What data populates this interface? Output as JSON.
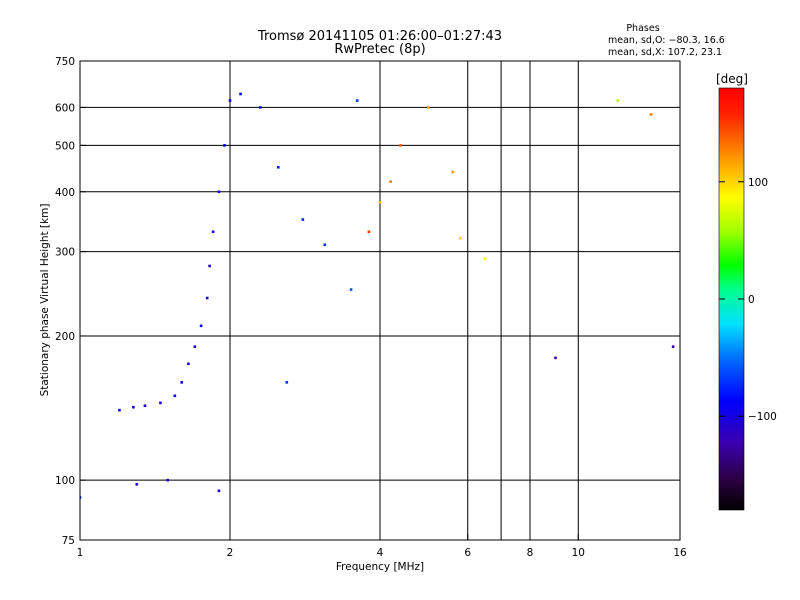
{
  "chart_data": {
    "type": "scatter",
    "title": "Tromsø 20141105 01:26:00–01:27:43",
    "subtitle": "RwPretec (8p)",
    "xlabel": "Frequency [MHz]",
    "ylabel": "Stationary phase Virtual Height [km]",
    "x_scale": "log",
    "y_scale": "log",
    "xlim": [
      1,
      16
    ],
    "ylim": [
      75,
      750
    ],
    "x_ticks": [
      1,
      2,
      4,
      6,
      8,
      10,
      16
    ],
    "x_tick_labels": [
      "1",
      "2",
      "4",
      "6",
      "8",
      "10",
      "16"
    ],
    "x_gridlines": [
      2,
      4,
      6,
      7,
      8,
      10
    ],
    "y_ticks": [
      75,
      100,
      200,
      300,
      400,
      500,
      600,
      750
    ],
    "y_tick_labels": [
      "75",
      "100",
      "200",
      "300",
      "400",
      "500",
      "600",
      "750"
    ],
    "y_gridlines": [
      100,
      200,
      300,
      400,
      500,
      600
    ],
    "grid": true,
    "legend": {
      "title": "Phases",
      "lines": [
        "mean, sd,O: −80.3, 16.6",
        "mean, sd,X: 107.2, 23.1"
      ],
      "placement": "top-right"
    },
    "colorbar": {
      "label": "[deg]",
      "min": -180,
      "max": 180,
      "ticks": [
        100,
        0,
        -100
      ],
      "tick_labels": [
        "100",
        "0",
        "−100"
      ],
      "colormap": "rainbow"
    },
    "series": [
      {
        "points": [
          {
            "x": 1.0,
            "y": 92,
            "c": -70
          },
          {
            "x": 1.2,
            "y": 140,
            "c": -90
          },
          {
            "x": 1.28,
            "y": 142,
            "c": -100
          },
          {
            "x": 1.35,
            "y": 143,
            "c": -110
          },
          {
            "x": 1.45,
            "y": 145,
            "c": -100
          },
          {
            "x": 1.55,
            "y": 150,
            "c": -90
          },
          {
            "x": 1.6,
            "y": 160,
            "c": -100
          },
          {
            "x": 1.65,
            "y": 175,
            "c": -110
          },
          {
            "x": 1.7,
            "y": 190,
            "c": -100
          },
          {
            "x": 1.75,
            "y": 210,
            "c": -90
          },
          {
            "x": 1.8,
            "y": 240,
            "c": -100
          },
          {
            "x": 1.82,
            "y": 280,
            "c": -110
          },
          {
            "x": 1.85,
            "y": 330,
            "c": -100
          },
          {
            "x": 1.9,
            "y": 400,
            "c": -100
          },
          {
            "x": 1.95,
            "y": 500,
            "c": -90
          },
          {
            "x": 2.0,
            "y": 620,
            "c": -100
          },
          {
            "x": 2.1,
            "y": 640,
            "c": -90
          },
          {
            "x": 2.3,
            "y": 600,
            "c": -80
          },
          {
            "x": 2.5,
            "y": 450,
            "c": -80
          },
          {
            "x": 2.8,
            "y": 350,
            "c": -75
          },
          {
            "x": 3.1,
            "y": 310,
            "c": -70
          },
          {
            "x": 3.5,
            "y": 250,
            "c": -60
          },
          {
            "x": 3.6,
            "y": 620,
            "c": -70
          },
          {
            "x": 4.0,
            "y": 380,
            "c": 110
          },
          {
            "x": 4.2,
            "y": 420,
            "c": 130
          },
          {
            "x": 4.4,
            "y": 500,
            "c": 140
          },
          {
            "x": 3.8,
            "y": 330,
            "c": 150
          },
          {
            "x": 5.0,
            "y": 600,
            "c": 120
          },
          {
            "x": 5.6,
            "y": 440,
            "c": 120
          },
          {
            "x": 5.8,
            "y": 320,
            "c": 100
          },
          {
            "x": 6.5,
            "y": 290,
            "c": 80
          },
          {
            "x": 2.6,
            "y": 160,
            "c": -70
          },
          {
            "x": 1.5,
            "y": 100,
            "c": -110
          },
          {
            "x": 1.3,
            "y": 98,
            "c": -100
          },
          {
            "x": 1.9,
            "y": 95,
            "c": -100
          },
          {
            "x": 9.0,
            "y": 180,
            "c": -120
          },
          {
            "x": 12.0,
            "y": 620,
            "c": 60
          },
          {
            "x": 14.0,
            "y": 580,
            "c": 130
          },
          {
            "x": 15.5,
            "y": 190,
            "c": -120
          }
        ]
      }
    ]
  }
}
